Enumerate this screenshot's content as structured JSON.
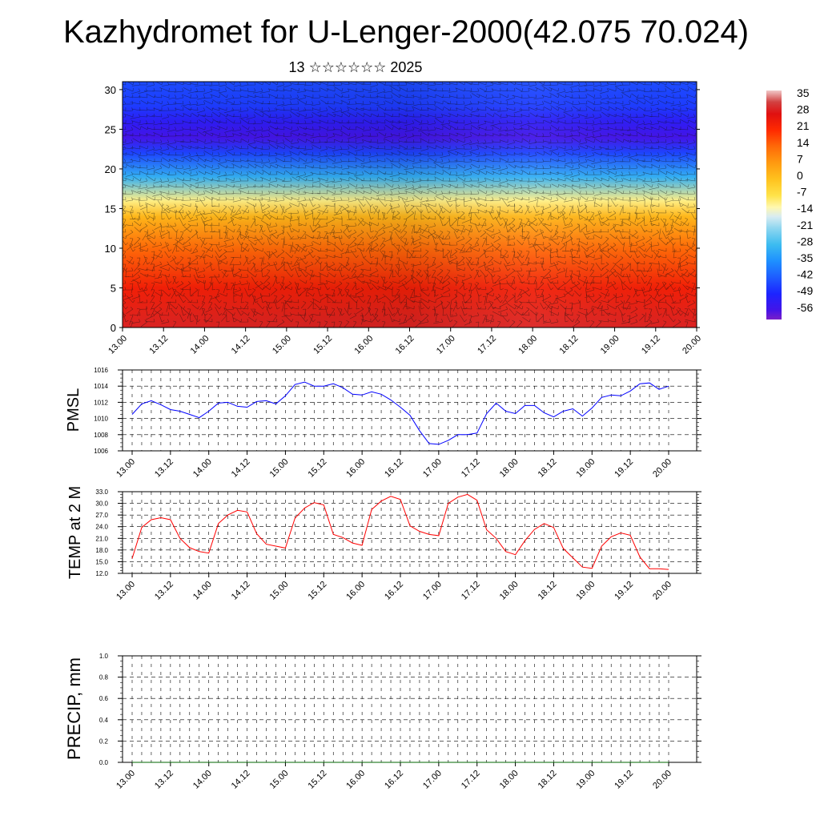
{
  "header": {
    "title": "Kazhydromet for U-Lenger-2000(42.075 70.024)",
    "date": "13 ☆☆☆☆☆☆ 2025"
  },
  "time_labels": [
    "13.00",
    "13.12",
    "14.00",
    "14.12",
    "15.00",
    "15.12",
    "16.00",
    "16.12",
    "17.00",
    "17.12",
    "18.00",
    "18.12",
    "19.00",
    "19.12",
    "20.00"
  ],
  "chart_data": [
    {
      "type": "heatmap",
      "description_axis": "height",
      "x_tick_labels": [
        "13.00",
        "13.12",
        "14.00",
        "14.12",
        "15.00",
        "15.12",
        "16.00",
        "16.12",
        "17.00",
        "17.12",
        "18.00",
        "18.12",
        "19.00",
        "19.12",
        "20.00"
      ],
      "y_ticks": [
        0,
        5,
        10,
        15,
        20,
        25,
        30
      ],
      "ylim": [
        0,
        31
      ],
      "colorbar": {
        "labels": [
          "35",
          "28",
          "21",
          "14",
          "7",
          "0",
          "-7",
          "-14",
          "-21",
          "-28",
          "-35",
          "-42",
          "-49",
          "-56"
        ],
        "range": [
          -60,
          38
        ]
      },
      "vertical_profile": [
        {
          "y": 0,
          "value": 30
        },
        {
          "y": 5,
          "value": 24
        },
        {
          "y": 10,
          "value": 14
        },
        {
          "y": 14,
          "value": 2
        },
        {
          "y": 16,
          "value": -10
        },
        {
          "y": 19,
          "value": -30
        },
        {
          "y": 22,
          "value": -45
        },
        {
          "y": 24,
          "value": -56
        },
        {
          "y": 26,
          "value": -52
        },
        {
          "y": 28,
          "value": -46
        },
        {
          "y": 31,
          "value": -44
        }
      ],
      "has_wind_barbs": true
    },
    {
      "type": "line",
      "ylabel": "PMSL",
      "ylim": [
        1006,
        1016
      ],
      "y_ticks": [
        "1006",
        "1008",
        "1010",
        "1012",
        "1014",
        "1016"
      ],
      "x_tick_labels": [
        "13.00",
        "13.12",
        "14.00",
        "14.12",
        "15.00",
        "15.12",
        "16.00",
        "16.12",
        "17.00",
        "17.12",
        "18.00",
        "18.12",
        "19.00",
        "19.12",
        "20.00"
      ],
      "color": "#0000ff",
      "x_hours_step": 3,
      "values": [
        1010.5,
        1011.8,
        1012.2,
        1011.7,
        1011.1,
        1010.9,
        1010.5,
        1010.1,
        1010.9,
        1011.9,
        1012.0,
        1011.5,
        1011.4,
        1012.1,
        1012.2,
        1011.8,
        1012.8,
        1014.2,
        1014.5,
        1014.0,
        1014.0,
        1014.3,
        1013.8,
        1013.0,
        1012.9,
        1013.3,
        1013.0,
        1012.3,
        1011.4,
        1010.4,
        1008.5,
        1006.9,
        1006.8,
        1007.3,
        1008.0,
        1008.0,
        1008.2,
        1010.6,
        1011.9,
        1010.9,
        1010.6,
        1011.6,
        1011.6,
        1010.7,
        1010.2,
        1010.9,
        1011.2,
        1010.3,
        1011.3,
        1012.6,
        1012.9,
        1012.8,
        1013.4,
        1014.3,
        1014.4,
        1013.6,
        1014.0
      ]
    },
    {
      "type": "line",
      "ylabel": "TEMP at 2 M",
      "ylim": [
        12,
        33
      ],
      "y_ticks": [
        "12.0",
        "15.0",
        "18.0",
        "21.0",
        "24.0",
        "27.0",
        "30.0",
        "33.0"
      ],
      "x_tick_labels": [
        "13.00",
        "13.12",
        "14.00",
        "14.12",
        "15.00",
        "15.12",
        "16.00",
        "16.12",
        "17.00",
        "17.12",
        "18.00",
        "18.12",
        "19.00",
        "19.12",
        "20.00"
      ],
      "color": "#ff0000",
      "x_hours_step": 3,
      "values": [
        15.8,
        23.8,
        25.8,
        26.3,
        25.8,
        21.0,
        18.6,
        17.6,
        17.2,
        24.8,
        27.0,
        28.2,
        27.8,
        22.2,
        19.5,
        19.0,
        18.5,
        26.2,
        28.8,
        30.2,
        29.6,
        22.0,
        21.2,
        19.8,
        19.2,
        28.4,
        30.6,
        31.8,
        31.0,
        24.2,
        22.8,
        22.0,
        21.7,
        30.0,
        31.6,
        32.3,
        30.8,
        23.2,
        21.0,
        17.6,
        16.8,
        20.4,
        23.3,
        24.8,
        23.8,
        18.4,
        16.0,
        13.6,
        13.3,
        19.0,
        21.4,
        22.4,
        21.8,
        16.2,
        13.2,
        13.2,
        13.0
      ]
    },
    {
      "type": "line",
      "ylabel": "PRECIP, mm",
      "ylim": [
        0,
        1
      ],
      "y_ticks": [
        "0.0",
        "0.2",
        "0.4",
        "0.6",
        "0.8",
        "1.0"
      ],
      "x_tick_labels": [
        "13.00",
        "13.12",
        "14.00",
        "14.12",
        "15.00",
        "15.12",
        "16.00",
        "16.12",
        "17.00",
        "17.12",
        "18.00",
        "18.12",
        "19.00",
        "19.12",
        "20.00"
      ],
      "color": "#006400",
      "x_hours_step": 3,
      "values": [
        0,
        0,
        0,
        0,
        0,
        0,
        0,
        0,
        0,
        0,
        0,
        0,
        0,
        0,
        0,
        0,
        0,
        0,
        0,
        0,
        0,
        0,
        0,
        0,
        0,
        0,
        0,
        0,
        0,
        0,
        0,
        0,
        0,
        0,
        0,
        0,
        0,
        0,
        0,
        0,
        0,
        0,
        0,
        0,
        0,
        0,
        0,
        0,
        0,
        0,
        0,
        0,
        0,
        0,
        0,
        0,
        0
      ]
    }
  ]
}
